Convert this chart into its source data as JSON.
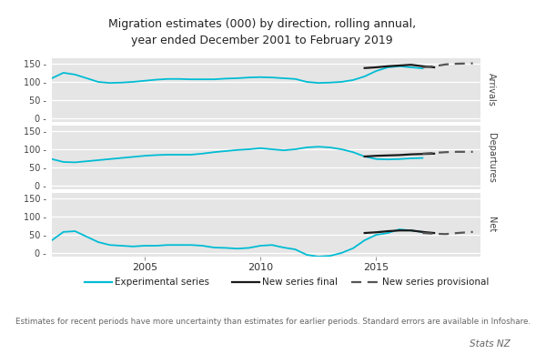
{
  "title": "Migration estimates (000) by direction, rolling annual,\nyear ended December 2001 to February 2019",
  "panels": [
    "Arrivals",
    "Departures",
    "Net"
  ],
  "ylim": [
    -10,
    165
  ],
  "yticks": [
    0,
    50,
    100,
    150
  ],
  "bg_color": "#e5e5e5",
  "fig_bg": "#ffffff",
  "experimental_color": "#00bcd4",
  "new_final_color": "#1a1a1a",
  "new_provisional_color": "#555555",
  "footer_note": "Estimates for recent periods have more uncertainty than estimates for earlier periods. Standard errors are available in Infoshare.",
  "footer_right": "Stats NZ",
  "arrivals_exp_x": [
    2001.0,
    2001.5,
    2002.0,
    2002.5,
    2003.0,
    2003.5,
    2004.0,
    2004.5,
    2005.0,
    2005.5,
    2006.0,
    2006.5,
    2007.0,
    2007.5,
    2008.0,
    2008.5,
    2009.0,
    2009.5,
    2010.0,
    2010.5,
    2011.0,
    2011.5,
    2012.0,
    2012.5,
    2013.0,
    2013.5,
    2014.0,
    2014.5,
    2015.0,
    2015.5,
    2016.0,
    2016.5,
    2017.0
  ],
  "arrivals_exp_y": [
    110,
    125,
    120,
    110,
    100,
    97,
    98,
    100,
    103,
    106,
    108,
    108,
    107,
    107,
    107,
    109,
    110,
    112,
    113,
    112,
    110,
    108,
    100,
    97,
    98,
    100,
    105,
    115,
    130,
    140,
    143,
    140,
    137
  ],
  "arrivals_final_x": [
    2014.5,
    2015.0,
    2015.5,
    2016.0,
    2016.5,
    2017.0,
    2017.5
  ],
  "arrivals_final_y": [
    138,
    140,
    143,
    145,
    147,
    143,
    140
  ],
  "arrivals_prov_x": [
    2017.0,
    2017.5,
    2018.0,
    2018.5,
    2019.17
  ],
  "arrivals_prov_y": [
    140,
    143,
    148,
    150,
    151
  ],
  "departures_exp_x": [
    2001.0,
    2001.5,
    2002.0,
    2002.5,
    2003.0,
    2003.5,
    2004.0,
    2004.5,
    2005.0,
    2005.5,
    2006.0,
    2006.5,
    2007.0,
    2007.5,
    2008.0,
    2008.5,
    2009.0,
    2009.5,
    2010.0,
    2010.5,
    2011.0,
    2011.5,
    2012.0,
    2012.5,
    2013.0,
    2013.5,
    2014.0,
    2014.5,
    2015.0,
    2015.5,
    2016.0,
    2016.5,
    2017.0
  ],
  "departures_exp_y": [
    73,
    65,
    64,
    67,
    70,
    73,
    76,
    79,
    82,
    84,
    85,
    85,
    85,
    88,
    92,
    95,
    98,
    100,
    103,
    100,
    97,
    100,
    105,
    107,
    105,
    100,
    92,
    80,
    73,
    72,
    73,
    75,
    76
  ],
  "departures_final_x": [
    2014.5,
    2015.0,
    2015.5,
    2016.0,
    2016.5,
    2017.0,
    2017.5
  ],
  "departures_final_y": [
    80,
    82,
    83,
    84,
    86,
    87,
    88
  ],
  "departures_prov_x": [
    2017.0,
    2017.5,
    2018.0,
    2018.5,
    2019.17
  ],
  "departures_prov_y": [
    88,
    90,
    92,
    93,
    93
  ],
  "net_exp_x": [
    2001.0,
    2001.5,
    2002.0,
    2002.5,
    2003.0,
    2003.5,
    2004.0,
    2004.5,
    2005.0,
    2005.5,
    2006.0,
    2006.5,
    2007.0,
    2007.5,
    2008.0,
    2008.5,
    2009.0,
    2009.5,
    2010.0,
    2010.5,
    2011.0,
    2011.5,
    2012.0,
    2012.5,
    2013.0,
    2013.5,
    2014.0,
    2014.5,
    2015.0,
    2015.5,
    2016.0,
    2016.5,
    2017.0
  ],
  "net_exp_y": [
    35,
    58,
    60,
    45,
    30,
    22,
    20,
    18,
    20,
    20,
    22,
    22,
    22,
    20,
    15,
    14,
    12,
    14,
    20,
    22,
    15,
    10,
    -5,
    -10,
    -8,
    0,
    13,
    35,
    50,
    55,
    65,
    62,
    58
  ],
  "net_final_x": [
    2014.5,
    2015.0,
    2015.5,
    2016.0,
    2016.5,
    2017.0,
    2017.5
  ],
  "net_final_y": [
    55,
    57,
    60,
    62,
    62,
    58,
    55
  ],
  "net_prov_x": [
    2017.0,
    2017.5,
    2018.0,
    2018.5,
    2019.17
  ],
  "net_prov_y": [
    55,
    53,
    52,
    55,
    58
  ],
  "xlim": [
    2001.0,
    2019.5
  ],
  "xticks": [
    2005,
    2010,
    2015
  ]
}
